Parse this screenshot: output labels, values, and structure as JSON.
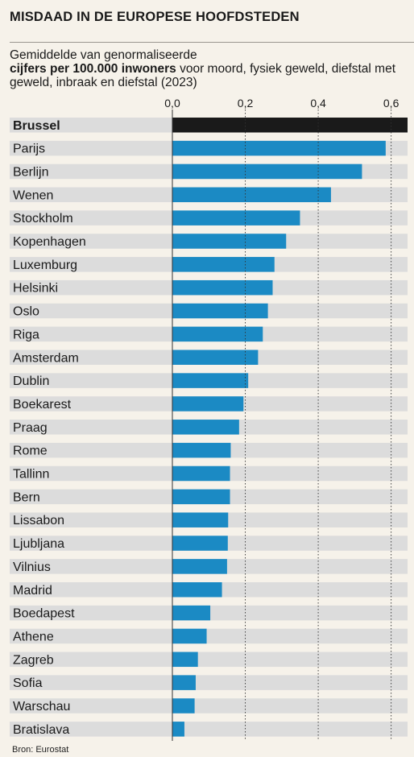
{
  "header": {
    "title": "MISDAAD IN DE EUROPESE HOOFDSTEDEN",
    "subtitle_pre": "Gemiddelde van genormaliseerde",
    "subtitle_bold": "cijfers per 100.000 inwoners",
    "subtitle_post": "voor moord, fysiek geweld, diefstal met geweld, inbraak en diefstal (2023)"
  },
  "footer": {
    "source": "Bron: Eurostat"
  },
  "colors": {
    "bar": "#1b8ac4",
    "highlight": "#1a1a1a",
    "row_band": "#dcdcdc",
    "background": "#f6f2ea"
  },
  "chart_data": {
    "type": "bar",
    "orientation": "horizontal",
    "highlight": "Brussel",
    "categories": [
      "Brussel",
      "Parijs",
      "Berlijn",
      "Wenen",
      "Stockholm",
      "Kopenhagen",
      "Luxemburg",
      "Helsinki",
      "Oslo",
      "Riga",
      "Amsterdam",
      "Dublin",
      "Boekarest",
      "Praag",
      "Rome",
      "Tallinn",
      "Bern",
      "Lissabon",
      "Ljubljana",
      "Vilnius",
      "Madrid",
      "Boedapest",
      "Athene",
      "Zagreb",
      "Sofia",
      "Warschau",
      "Bratislava"
    ],
    "values": [
      0.645,
      0.585,
      0.52,
      0.435,
      0.35,
      0.312,
      0.28,
      0.275,
      0.262,
      0.248,
      0.235,
      0.208,
      0.195,
      0.183,
      0.16,
      0.158,
      0.158,
      0.153,
      0.152,
      0.15,
      0.136,
      0.104,
      0.094,
      0.07,
      0.064,
      0.061,
      0.033
    ],
    "xticks": [
      "0,0",
      "0,2",
      "0,4",
      "0,6"
    ],
    "xtick_values": [
      0,
      0.2,
      0.4,
      0.6
    ],
    "xlim": [
      0,
      0.645
    ],
    "grid": "vertical dotted"
  }
}
